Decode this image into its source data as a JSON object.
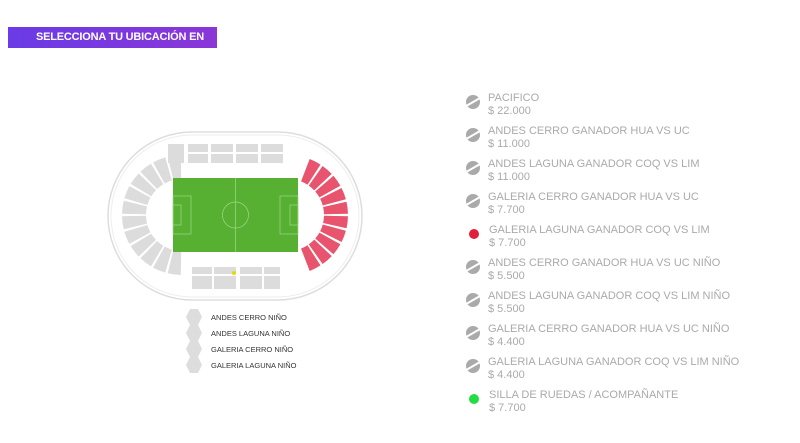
{
  "header": {
    "title": "SELECCIONA TU UBICACIÓN EN EL MAPA"
  },
  "colors": {
    "available": "#e8536e",
    "unavailable": "#dcdcdc",
    "field": "#58b032",
    "accent": "#7a3ae0"
  },
  "map_legend": [
    "ANDES CERRO NIÑO",
    "ANDES LAGUNA NIÑO",
    "GALERIA CERRO NIÑO",
    "GALERIA LAGUNA NIÑO"
  ],
  "zones": [
    {
      "name": "PACIFICO",
      "price": "$ 22.000",
      "icon": "disabled-icon"
    },
    {
      "name": "ANDES CERRO GANADOR HUA VS UC",
      "price": "$ 11.000",
      "icon": "disabled-icon"
    },
    {
      "name": "ANDES LAGUNA GANADOR COQ VS LIM",
      "price": "$ 11.000",
      "icon": "disabled-icon"
    },
    {
      "name": "GALERIA CERRO GANADOR HUA VS UC",
      "price": "$ 7.700",
      "icon": "disabled-icon"
    },
    {
      "name": "GALERIA LAGUNA GANADOR COQ VS LIM",
      "price": "$ 7.700",
      "icon": "dot-icon",
      "color": "#e0203a"
    },
    {
      "name": "ANDES CERRO GANADOR HUA VS UC NIÑO",
      "price": "$ 5.500",
      "icon": "disabled-icon"
    },
    {
      "name": "ANDES LAGUNA GANADOR COQ VS LIM NIÑO",
      "price": "$ 5.500",
      "icon": "disabled-icon"
    },
    {
      "name": "GALERIA CERRO GANADOR HUA VS UC NIÑO",
      "price": "$ 4.400",
      "icon": "disabled-icon"
    },
    {
      "name": "GALERIA LAGUNA GANADOR COQ VS LIM NIÑO",
      "price": "$ 4.400",
      "icon": "disabled-icon"
    },
    {
      "name": "SILLA DE RUEDAS / ACOMPAÑANTE",
      "price": "$ 7.700",
      "icon": "dot-icon",
      "color": "#22dd44"
    }
  ]
}
